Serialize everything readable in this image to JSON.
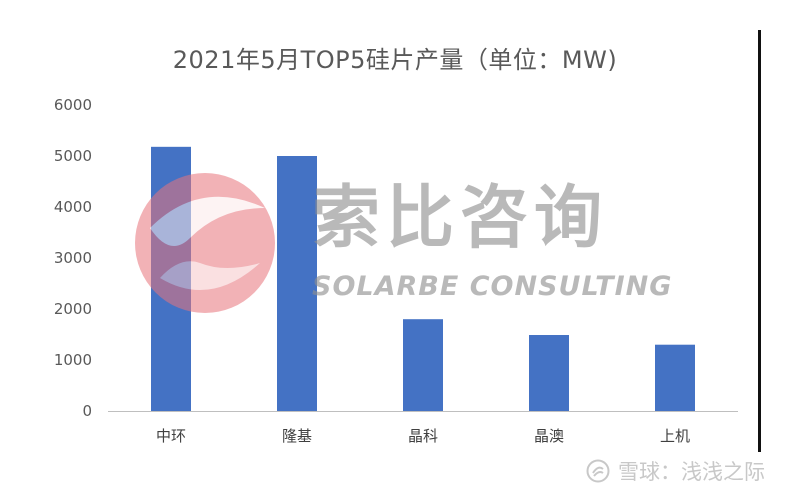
{
  "chart_data": {
    "type": "bar",
    "title": "2021年5月TOP5硅片产量（单位：MW)",
    "xlabel": "",
    "ylabel": "",
    "categories": [
      "中环",
      "隆基",
      "晶科",
      "晶澳",
      "上机"
    ],
    "values": [
      5180,
      5000,
      1800,
      1490,
      1300
    ],
    "ylim": [
      0,
      6000
    ],
    "yticks": [
      "0",
      "1000",
      "2000",
      "3000",
      "4000",
      "5000",
      "6000"
    ],
    "grid": false,
    "legend": "none",
    "bar_color": "#4472C4"
  },
  "watermark": {
    "chinese": "索比咨询",
    "english": "SOLARBE CONSULTING",
    "seal_color": "#e8747c"
  },
  "footer": {
    "credit": "雪球：浅浅之际",
    "icon": "snowball-icon"
  }
}
